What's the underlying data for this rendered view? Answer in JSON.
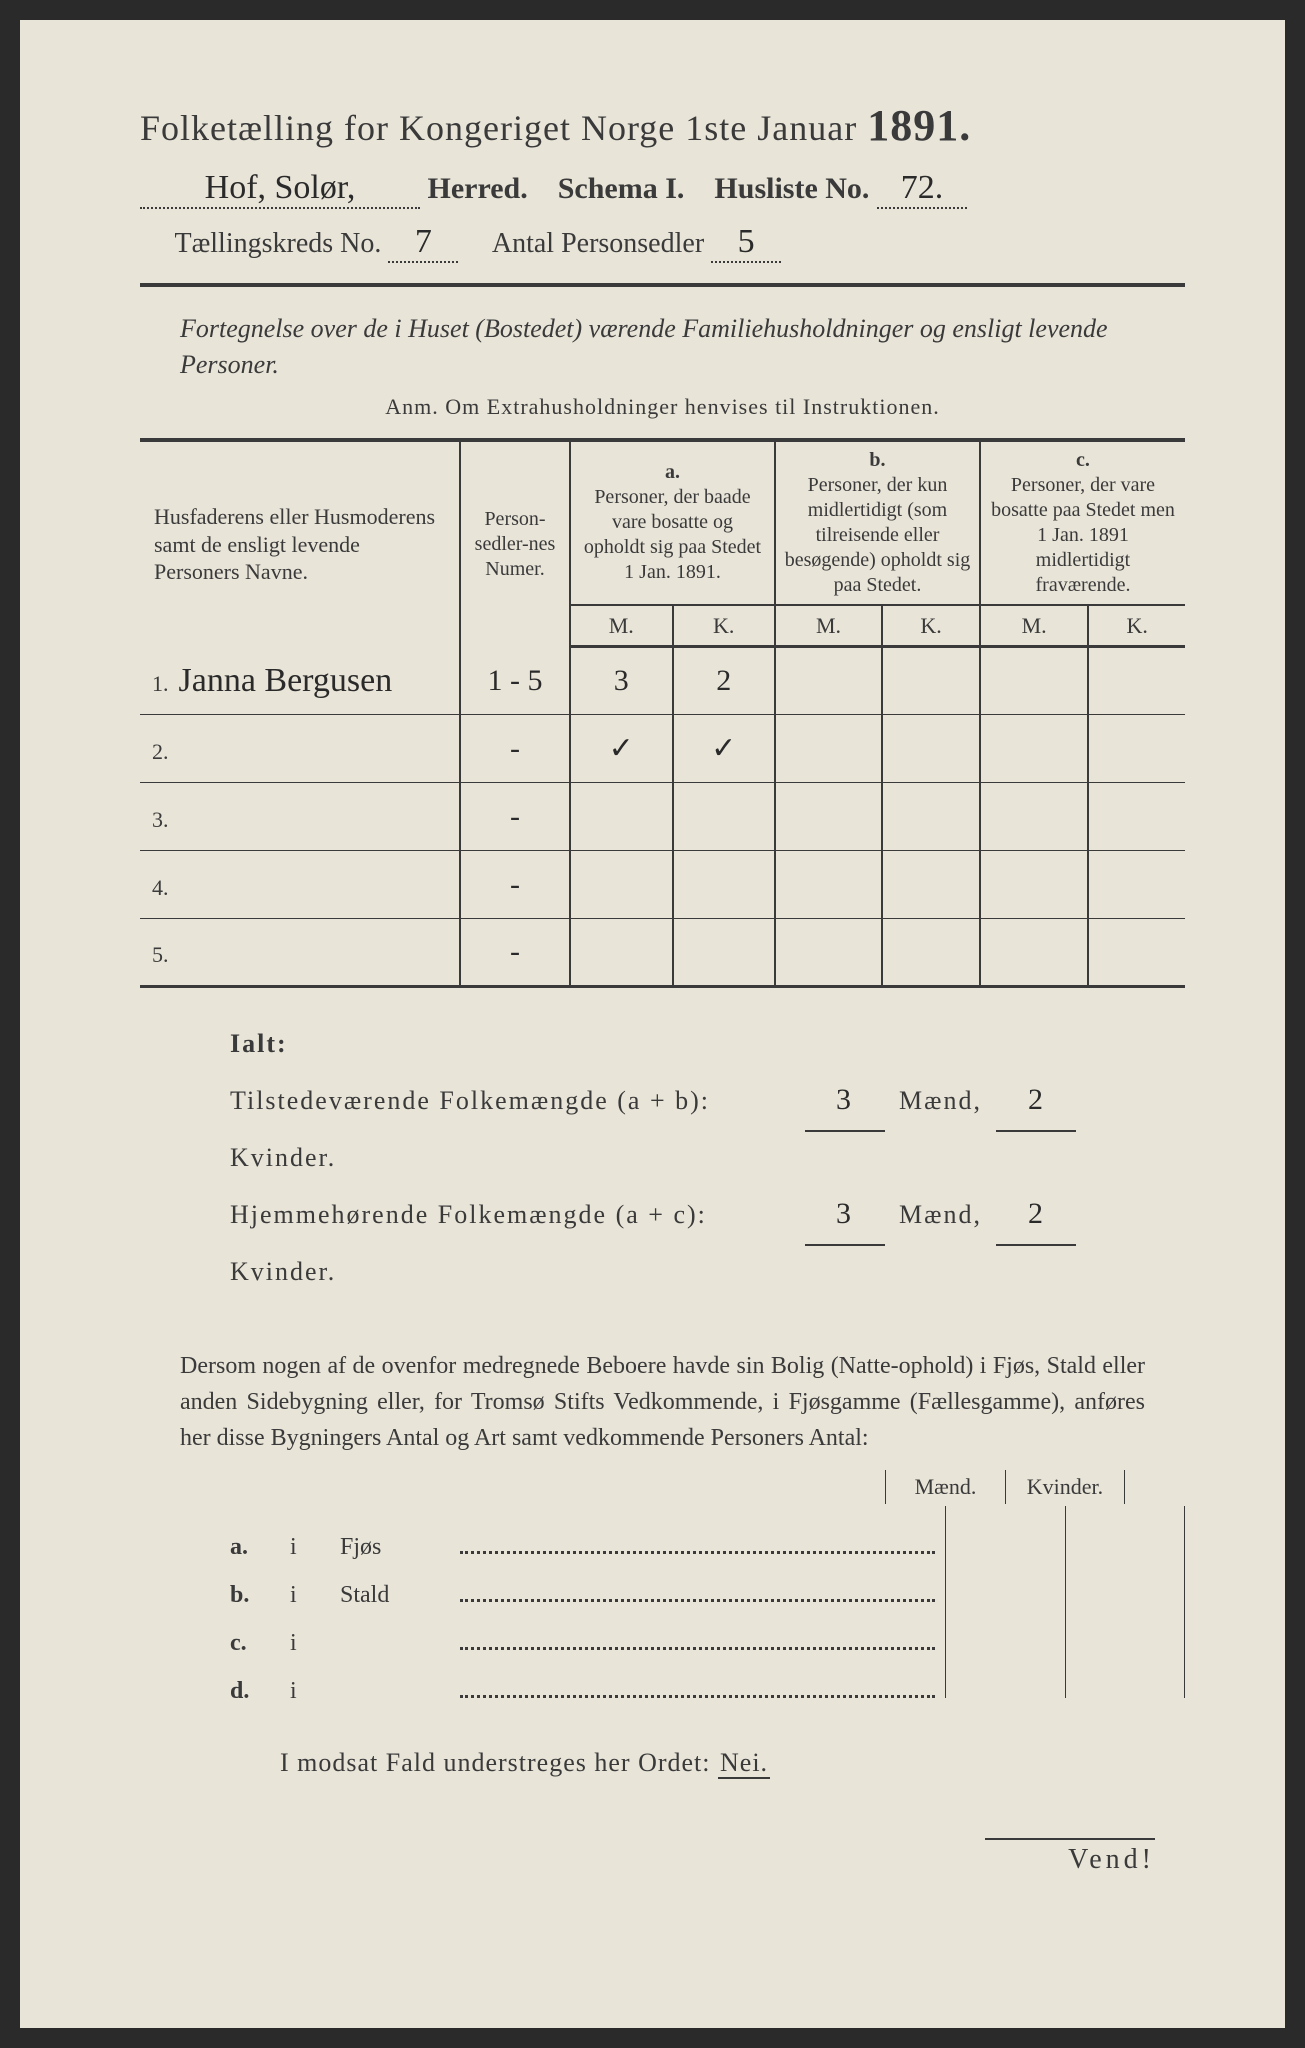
{
  "header": {
    "title_prefix": "Folketælling for Kongeriget Norge 1ste Januar",
    "year": "1891.",
    "herred_value": "Hof, Solør,",
    "herred_label": "Herred.",
    "schema_label": "Schema I.",
    "husliste_label": "Husliste No.",
    "husliste_value": "72.",
    "kreds_label": "Tællingskreds No.",
    "kreds_value": "7",
    "antal_label": "Antal Personsedler",
    "antal_value": "5"
  },
  "subtitle": {
    "line": "Fortegnelse over de i Huset (Bostedet) værende Familiehusholdninger og ensligt levende Personer.",
    "anm": "Anm. Om Extrahusholdninger henvises til Instruktionen."
  },
  "columns": {
    "name": "Husfaderens eller Husmoderens samt de ensligt levende Personers Navne.",
    "numer": "Person-sedler-nes Numer.",
    "a_head": "a.",
    "a_text": "Personer, der baade vare bosatte og opholdt sig paa Stedet 1 Jan. 1891.",
    "b_head": "b.",
    "b_text": "Personer, der kun midlertidigt (som tilreisende eller besøgende) opholdt sig paa Stedet.",
    "c_head": "c.",
    "c_text": "Personer, der vare bosatte paa Stedet men 1 Jan. 1891 midlertidigt fraværende.",
    "m": "M.",
    "k": "K."
  },
  "rows": [
    {
      "n": "1.",
      "name": "Janna Bergusen",
      "numer": "1 - 5",
      "a_m": "3",
      "a_k": "2",
      "b_m": "",
      "b_k": "",
      "c_m": "",
      "c_k": ""
    },
    {
      "n": "2.",
      "name": "",
      "numer": "-",
      "a_m": "✓",
      "a_k": "✓",
      "b_m": "",
      "b_k": "",
      "c_m": "",
      "c_k": ""
    },
    {
      "n": "3.",
      "name": "",
      "numer": "-",
      "a_m": "",
      "a_k": "",
      "b_m": "",
      "b_k": "",
      "c_m": "",
      "c_k": ""
    },
    {
      "n": "4.",
      "name": "",
      "numer": "-",
      "a_m": "",
      "a_k": "",
      "b_m": "",
      "b_k": "",
      "c_m": "",
      "c_k": ""
    },
    {
      "n": "5.",
      "name": "",
      "numer": "-",
      "a_m": "",
      "a_k": "",
      "b_m": "",
      "b_k": "",
      "c_m": "",
      "c_k": ""
    }
  ],
  "ialt": {
    "label": "Ialt:",
    "line1_label": "Tilstedeværende Folkemængde (a + b):",
    "line2_label": "Hjemmehørende Folkemængde (a + c):",
    "maend": "Mænd,",
    "kvinder": "Kvinder.",
    "l1_m": "3",
    "l1_k": "2",
    "l2_m": "3",
    "l2_k": "2"
  },
  "para": "Dersom nogen af de ovenfor medregnede Beboere havde sin Bolig (Natte-ophold) i Fjøs, Stald eller anden Sidebygning eller, for Tromsø Stifts Vedkommende, i Fjøsgamme (Fællesgamme), anføres her disse Bygningers Antal og Art samt vedkommende Personers Antal:",
  "abcd": {
    "mk_m": "Mænd.",
    "mk_k": "Kvinder.",
    "rows": [
      {
        "label": "a.",
        "i": "i",
        "name": "Fjøs"
      },
      {
        "label": "b.",
        "i": "i",
        "name": "Stald"
      },
      {
        "label": "c.",
        "i": "i",
        "name": ""
      },
      {
        "label": "d.",
        "i": "i",
        "name": ""
      }
    ]
  },
  "nei": {
    "text": "I modsat Fald understreges her Ordet:",
    "word": "Nei."
  },
  "vend": "Vend!"
}
